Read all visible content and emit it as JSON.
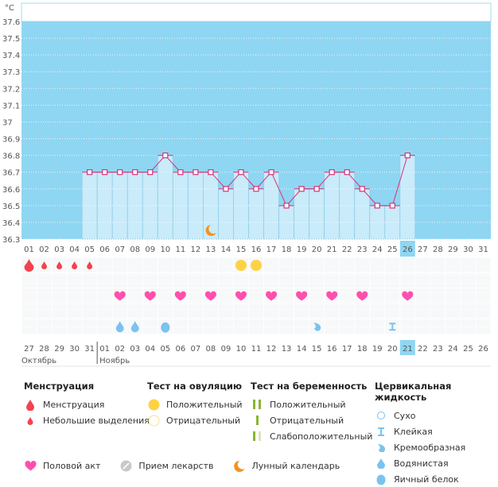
{
  "chart_data": {
    "type": "line",
    "title": "",
    "ylabel": "°C",
    "ylim": [
      36.3,
      37.6
    ],
    "yticks": [
      "37.6",
      "37.5",
      "37.4",
      "37.3",
      "37.2",
      "37.1",
      "37",
      "36.9",
      "36.8",
      "36.7",
      "36.6",
      "36.5",
      "36.4",
      "36.3"
    ],
    "x_top": [
      "01",
      "02",
      "03",
      "04",
      "05",
      "06",
      "07",
      "08",
      "09",
      "10",
      "11",
      "12",
      "13",
      "14",
      "15",
      "16",
      "17",
      "18",
      "19",
      "20",
      "21",
      "22",
      "23",
      "24",
      "25",
      "26",
      "27",
      "28",
      "29",
      "30",
      "31"
    ],
    "x_bottom": [
      "27",
      "28",
      "29",
      "30",
      "31",
      "01",
      "02",
      "03",
      "04",
      "05",
      "06",
      "07",
      "08",
      "09",
      "10",
      "11",
      "12",
      "13",
      "14",
      "15",
      "16",
      "17",
      "18",
      "19",
      "20",
      "21",
      "22",
      "23",
      "24",
      "25",
      "26"
    ],
    "x_bottom_red": [
      "31",
      "01",
      "07",
      "08",
      "14",
      "15",
      "22"
    ],
    "months": [
      "Октябрь",
      "Ноябрь"
    ],
    "highlight_day": "26",
    "highlight_day_bottom": "21",
    "series": [
      {
        "name": "Температура",
        "color": "#d6337a",
        "values": [
          null,
          null,
          null,
          null,
          36.7,
          36.7,
          36.7,
          36.7,
          36.7,
          36.8,
          36.7,
          36.7,
          36.7,
          36.6,
          36.7,
          36.6,
          36.7,
          36.5,
          36.6,
          36.6,
          36.7,
          36.7,
          36.6,
          36.5,
          36.5,
          36.8,
          null,
          null,
          null,
          null,
          null
        ]
      }
    ],
    "moon_day": "13",
    "events": {
      "menstruation": [
        {
          "day": "01",
          "kind": "menstruation"
        },
        {
          "day": "02",
          "kind": "spotting"
        },
        {
          "day": "03",
          "kind": "spotting"
        },
        {
          "day": "04",
          "kind": "spotting"
        },
        {
          "day": "05",
          "kind": "spotting"
        }
      ],
      "ovulation_test": [
        {
          "day": "15",
          "kind": "positive"
        },
        {
          "day": "16",
          "kind": "positive"
        }
      ],
      "intercourse": [
        "07",
        "09",
        "11",
        "13",
        "15",
        "17",
        "19",
        "21",
        "23",
        "26"
      ],
      "cervical_fluid": [
        {
          "day": "07",
          "kind": "watery"
        },
        {
          "day": "08",
          "kind": "watery"
        },
        {
          "day": "10",
          "kind": "egg-white"
        },
        {
          "day": "20",
          "kind": "creamy"
        },
        {
          "day": "25",
          "kind": "sticky"
        }
      ]
    }
  },
  "colors": {
    "plot_bg": "#8fd6f2",
    "bar_fill": "#c9ebfa",
    "bar_border": "#8fcde6",
    "line": "#d6337a",
    "red_date": "#d6337a",
    "drop_red": "#f2434d",
    "heart": "#ff4fae",
    "yellow": "#fdd344",
    "fluid_blue": "#79c3ef",
    "moon": "#f2921d",
    "green": "#8ab531",
    "green_light": "#d8e6b8"
  },
  "legend": {
    "menstruation": {
      "title": "Менструация",
      "items": [
        "Менструация",
        "Небольшие выделения"
      ]
    },
    "ovulation": {
      "title": "Тест на овуляцию",
      "items": [
        "Положительный",
        "Отрицательный"
      ]
    },
    "pregnancy": {
      "title": "Тест на беременность",
      "items": [
        "Положительный",
        "Отрицательный",
        "Слабоположительный"
      ]
    },
    "cervical": {
      "title": "Цервикальная жидкость",
      "items": [
        "Сухо",
        "Клейкая",
        "Кремообразная",
        "Водянистая",
        "Яичный белок"
      ]
    },
    "bottom": [
      "Половой акт",
      "Прием лекарств",
      "Лунный календарь"
    ]
  }
}
